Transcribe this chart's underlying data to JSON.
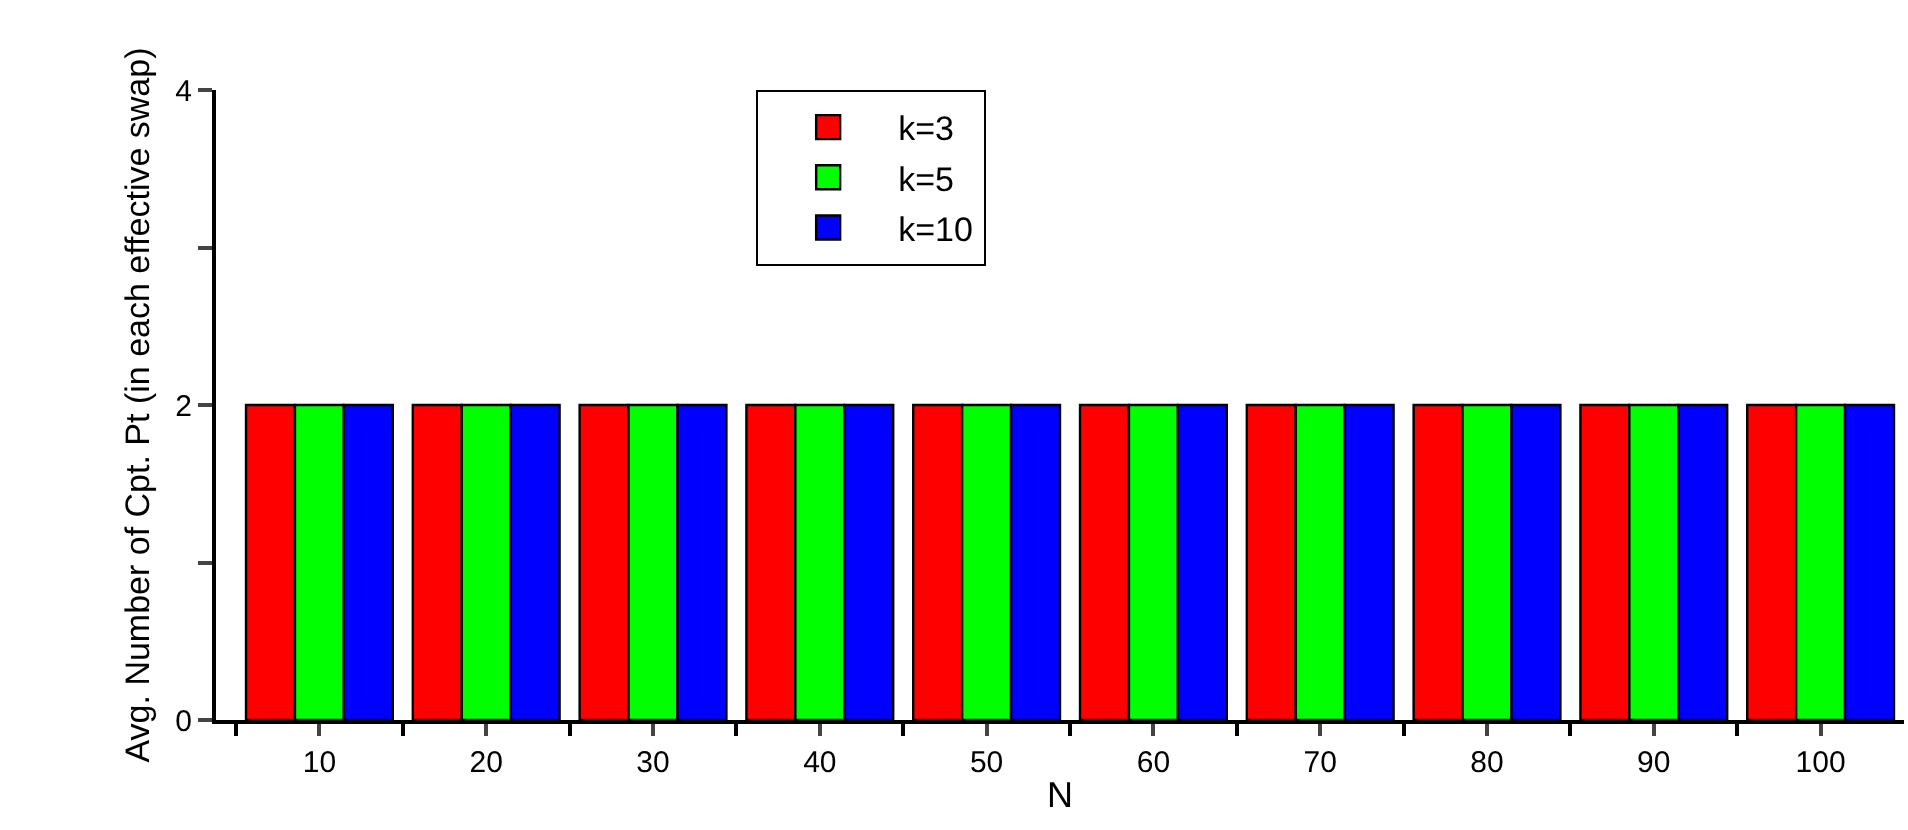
{
  "chart_data": {
    "type": "bar",
    "xlabel": "N",
    "ylabel": "Avg. Number of Cpt. Pt (in each effective swap)",
    "categories": [
      "10",
      "20",
      "30",
      "40",
      "50",
      "60",
      "70",
      "80",
      "90",
      "100"
    ],
    "series": [
      {
        "name": "k=3",
        "color": "#ff0000",
        "values": [
          2,
          2,
          2,
          2,
          2,
          2,
          2,
          2,
          2,
          2
        ]
      },
      {
        "name": "k=5",
        "color": "#00ff00",
        "values": [
          2,
          2,
          2,
          2,
          2,
          2,
          2,
          2,
          2,
          2
        ]
      },
      {
        "name": "k=10",
        "color": "#0000ff",
        "values": [
          2,
          2,
          2,
          2,
          2,
          2,
          2,
          2,
          2,
          2
        ]
      }
    ],
    "ylim": [
      0,
      4
    ],
    "yticks": [
      0,
      {
        "value": 1,
        "label": null
      },
      2,
      {
        "value": 3,
        "label": null
      },
      4
    ],
    "legend": "top"
  }
}
